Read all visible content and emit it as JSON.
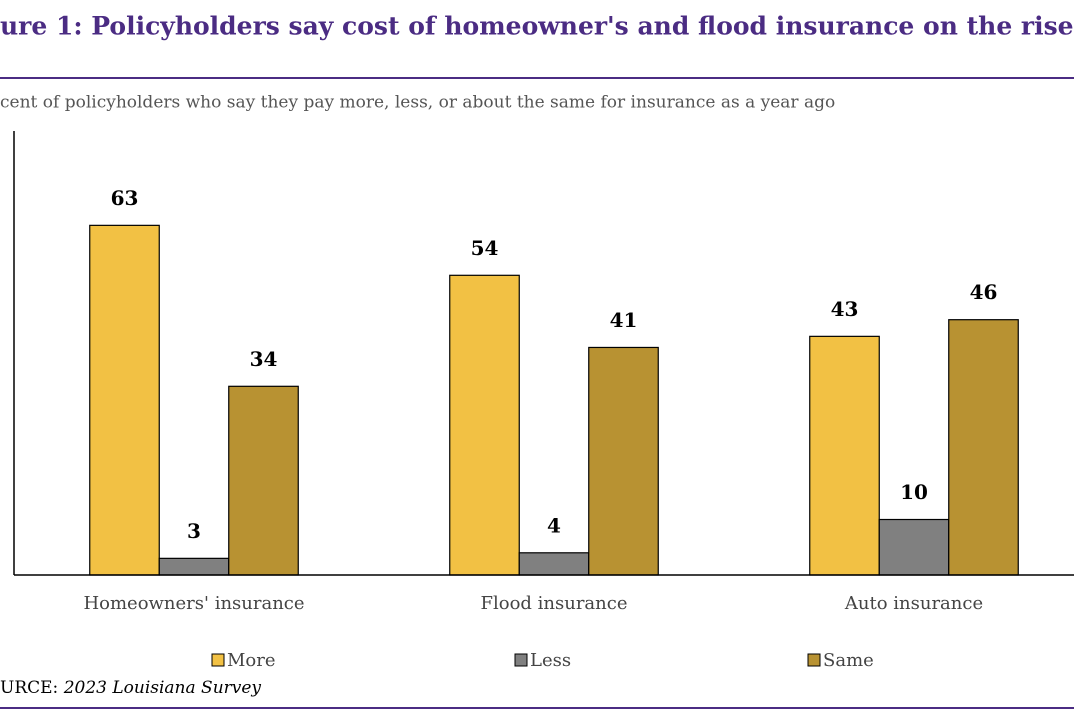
{
  "chart_data": {
    "type": "bar",
    "title": "ure 1: Policyholders say cost of homeowner's and flood insurance on the rise",
    "subtitle": "cent of policyholders who say they pay more, less, or about the same for insurance as a year ago",
    "categories": [
      "Homeowners' insurance",
      "Flood insurance",
      "Auto insurance"
    ],
    "series": [
      {
        "name": "More",
        "color": "#f2c144",
        "values": [
          63,
          54,
          43
        ]
      },
      {
        "name": "Less",
        "color": "#808080",
        "values": [
          3,
          4,
          10
        ]
      },
      {
        "name": "Same",
        "color": "#b89232",
        "values": [
          34,
          41,
          46
        ]
      }
    ],
    "ylim": [
      0,
      80
    ],
    "source": {
      "label": "URCE:",
      "text": "2023 Louisiana Survey"
    }
  }
}
